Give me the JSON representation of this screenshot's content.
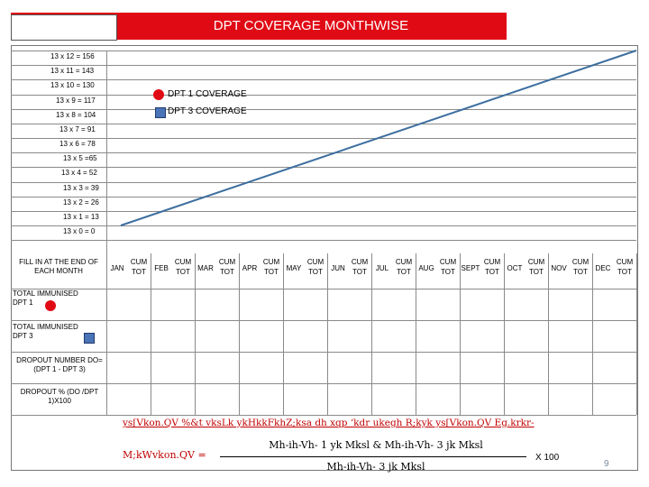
{
  "header": {
    "title": "DPT COVERAGE MONTHWISE"
  },
  "y_axis_labels": [
    "13 x 12 = 156",
    "13 x 11 = 143",
    "13 x 10 = 130",
    "13 x 9 = 117",
    "13 x 8 = 104",
    "13 x 7 = 91",
    "13 x 6 = 78",
    "13 x 5 =65",
    "13 x 4 = 52",
    "13 x 3 = 39",
    "13 x 2 = 26",
    "13 x 1 = 13",
    "13 x 0 = 0"
  ],
  "legend": {
    "dpt1": "DPT 1 COVERAGE",
    "dpt3": "DPT 3 COVERAGE"
  },
  "month_row_label": "FILL IN AT THE END OF EACH MONTH",
  "months": [
    {
      "name": "JAN",
      "cum": "CUM",
      "tot": "TOT"
    },
    {
      "name": "FEB",
      "cum": "CUM",
      "tot": "TOT"
    },
    {
      "name": "MAR",
      "cum": "CUM",
      "tot": "TOT"
    },
    {
      "name": "APR",
      "cum": "CUM",
      "tot": "TOT"
    },
    {
      "name": "MAY",
      "cum": "CUM",
      "tot": "TOT"
    },
    {
      "name": "JUN",
      "cum": "CUM",
      "tot": "TOT"
    },
    {
      "name": "JUL",
      "cum": "CUM",
      "tot": "TOT"
    },
    {
      "name": "AUG",
      "cum": "CUM",
      "tot": "TOT"
    },
    {
      "name": "SEPT",
      "cum": "CUM",
      "tot": "TOT"
    },
    {
      "name": "OCT",
      "cum": "CUM",
      "tot": "TOT"
    },
    {
      "name": "NOV",
      "cum": "CUM",
      "tot": "TOT"
    },
    {
      "name": "DEC",
      "cum": "CUM",
      "tot": "TOT"
    }
  ],
  "rows": {
    "immunised_dpt1": "TOTAL IMMUNISED DPT 1",
    "immunised_dpt3": "TOTAL IMMUNISED DPT 3",
    "dropout_number": "DROPOUT NUMBER DO=(DPT 1 - DPT 3)",
    "dropout_percent": "DROPOUT % (DO /DPT 1)X100"
  },
  "formula": {
    "line1": "ys[Vkon.QV %&t vksLk ykHkkFkhZ;ksa dh xqp ‘kdr ukegh R;kyk ys[Vkon.QV Eg.krkr-",
    "lhs": "M;kWvkon.QV =",
    "numerator": "Mh-ih-Vh- 1 yk Mksl & Mh-ih-Vh- 3 jk Mksl",
    "denominator": "Mh-ih-Vh- 3 jk Mksl",
    "multiplier": "X 100"
  },
  "page_number": "9",
  "colors": {
    "title_bg": "#e00a15",
    "dpt1": "#e00a15",
    "dpt3": "#4a73b8",
    "target_line": "#3d6fa0"
  },
  "chart_data": {
    "type": "line",
    "title": "DPT COVERAGE MONTHWISE",
    "y_ticks": [
      0,
      13,
      26,
      39,
      52,
      65,
      78,
      91,
      104,
      117,
      130,
      143,
      156
    ],
    "ylim": [
      0,
      156
    ],
    "categories": [
      "JAN",
      "FEB",
      "MAR",
      "APR",
      "MAY",
      "JUN",
      "JUL",
      "AUG",
      "SEPT",
      "OCT",
      "NOV",
      "DEC"
    ],
    "series": [
      {
        "x_start": 0,
        "y_start": 0,
        "x_end": 12,
        "y_end": 156
      }
    ],
    "legend": [
      "DPT 1 COVERAGE",
      "DPT 3 COVERAGE"
    ],
    "legend_position": "top-left",
    "grid": true
  }
}
